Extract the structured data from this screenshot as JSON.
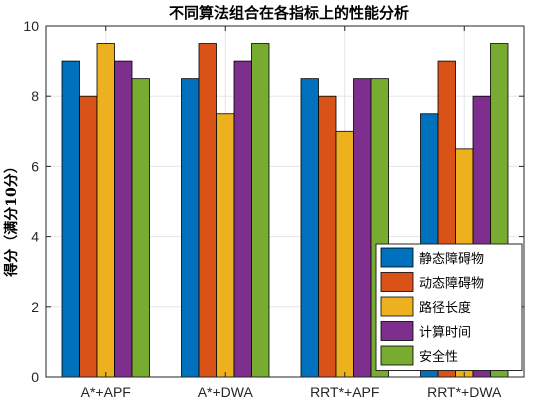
{
  "chart_data": {
    "type": "bar",
    "title": "不同算法组合在各指标上的性能分析",
    "xlabel": "",
    "ylabel": "得分（满分10分）",
    "categories": [
      "A*+APF",
      "A*+DWA",
      "RRT*+APF",
      "RRT*+DWA"
    ],
    "yticks": [
      "0",
      "2",
      "4",
      "6",
      "8",
      "10"
    ],
    "ylim": [
      0,
      10
    ],
    "grid": true,
    "legend_position": "bottom-right",
    "series": [
      {
        "name": "静态障碍物",
        "color": "#0072BD",
        "values": [
          9,
          8.5,
          8.5,
          7.5
        ]
      },
      {
        "name": "动态障碍物",
        "color": "#D95319",
        "values": [
          8,
          9.5,
          8,
          9
        ]
      },
      {
        "name": "路径长度",
        "color": "#EDB120",
        "values": [
          9.5,
          7.5,
          7,
          6.5
        ]
      },
      {
        "name": "计算时间",
        "color": "#7E2F8E",
        "values": [
          9,
          9,
          8.5,
          8
        ]
      },
      {
        "name": "安全性",
        "color": "#77AC30",
        "values": [
          8.5,
          9.5,
          8.5,
          9.5
        ]
      }
    ]
  }
}
